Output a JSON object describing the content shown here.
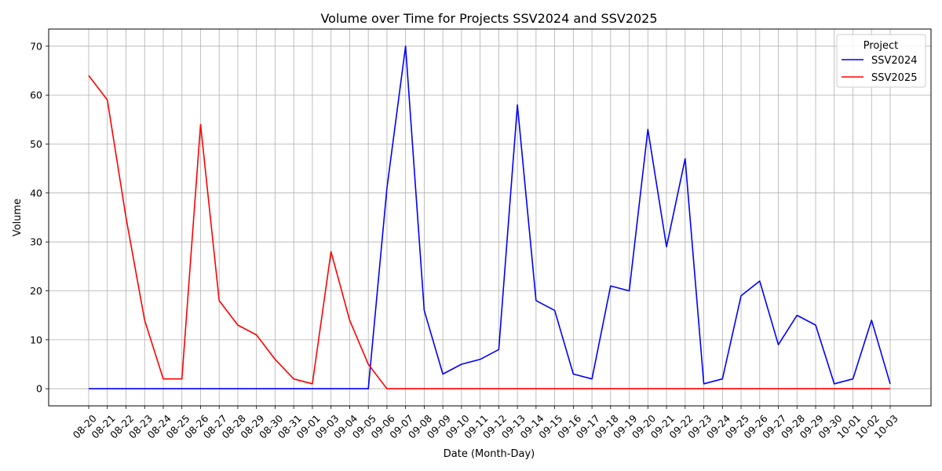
{
  "chart_data": {
    "type": "line",
    "title": "Volume over Time for Projects SSV2024 and SSV2025",
    "xlabel": "Date (Month-Day)",
    "ylabel": "Volume",
    "ylim": [
      -3.5,
      73.5
    ],
    "yticks": [
      0,
      10,
      20,
      30,
      40,
      50,
      60,
      70
    ],
    "grid": true,
    "legend": {
      "title": "Project",
      "placement": "top-right"
    },
    "categories": [
      "08-20",
      "08-21",
      "08-22",
      "08-23",
      "08-24",
      "08-25",
      "08-26",
      "08-27",
      "08-28",
      "08-29",
      "08-30",
      "08-31",
      "09-01",
      "09-03",
      "09-04",
      "09-05",
      "09-06",
      "09-07",
      "09-08",
      "09-09",
      "09-10",
      "09-11",
      "09-12",
      "09-13",
      "09-14",
      "09-15",
      "09-16",
      "09-17",
      "09-18",
      "09-19",
      "09-20",
      "09-21",
      "09-22",
      "09-23",
      "09-24",
      "09-25",
      "09-26",
      "09-27",
      "09-28",
      "09-29",
      "09-30",
      "10-01",
      "10-02",
      "10-03"
    ],
    "series": [
      {
        "name": "SSV2024",
        "color": "#0000ff",
        "values": [
          0,
          0,
          0,
          0,
          0,
          0,
          0,
          0,
          0,
          0,
          0,
          0,
          0,
          0,
          0,
          0,
          41,
          70,
          16,
          3,
          5,
          6,
          8,
          58,
          18,
          16,
          3,
          2,
          21,
          20,
          53,
          29,
          47,
          1,
          2,
          19,
          22,
          9,
          15,
          13,
          1,
          2,
          14,
          1
        ]
      },
      {
        "name": "SSV2025",
        "color": "#ff0000",
        "values": [
          64,
          59,
          35,
          14,
          2,
          2,
          54,
          18,
          13,
          11,
          6,
          2,
          1,
          28,
          14,
          5,
          0,
          0,
          0,
          0,
          0,
          0,
          0,
          0,
          0,
          0,
          0,
          0,
          0,
          0,
          0,
          0,
          0,
          0,
          0,
          0,
          0,
          0,
          0,
          0,
          0,
          0,
          0,
          0
        ]
      }
    ]
  }
}
